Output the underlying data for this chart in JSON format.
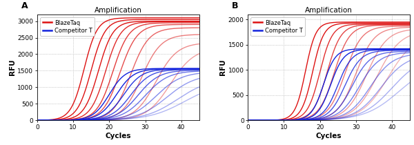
{
  "title": "Amplification",
  "xlabel": "Cycles",
  "ylabel": "RFU",
  "background": "#ffffff",
  "panel_A": {
    "label": "A",
    "ylim": [
      0,
      3200
    ],
    "yticks": [
      0,
      500,
      1000,
      1500,
      2000,
      2500,
      3000
    ],
    "xlim": [
      0,
      45
    ],
    "xticks": [
      0,
      10,
      20,
      30,
      40
    ],
    "red_curves": [
      {
        "L": 3100,
        "k": 0.55,
        "x0": 13,
        "alpha": 1.0
      },
      {
        "L": 3050,
        "k": 0.52,
        "x0": 15,
        "alpha": 1.0
      },
      {
        "L": 3000,
        "k": 0.5,
        "x0": 17,
        "alpha": 1.0
      },
      {
        "L": 2980,
        "k": 0.48,
        "x0": 19,
        "alpha": 0.9
      },
      {
        "L": 2950,
        "k": 0.45,
        "x0": 21,
        "alpha": 0.82
      },
      {
        "L": 2900,
        "k": 0.42,
        "x0": 23,
        "alpha": 0.75
      },
      {
        "L": 2800,
        "k": 0.4,
        "x0": 26,
        "alpha": 0.65
      },
      {
        "L": 2600,
        "k": 0.37,
        "x0": 29,
        "alpha": 0.55
      },
      {
        "L": 2350,
        "k": 0.34,
        "x0": 33,
        "alpha": 0.48
      },
      {
        "L": 2200,
        "k": 0.3,
        "x0": 37,
        "alpha": 0.4
      }
    ],
    "blue_curves": [
      {
        "L": 1570,
        "k": 0.45,
        "x0": 20,
        "alpha": 1.0
      },
      {
        "L": 1560,
        "k": 0.42,
        "x0": 22,
        "alpha": 1.0
      },
      {
        "L": 1550,
        "k": 0.4,
        "x0": 24,
        "alpha": 0.9
      },
      {
        "L": 1540,
        "k": 0.37,
        "x0": 26,
        "alpha": 0.8
      },
      {
        "L": 1520,
        "k": 0.34,
        "x0": 28,
        "alpha": 0.72
      },
      {
        "L": 1500,
        "k": 0.31,
        "x0": 30,
        "alpha": 0.62
      },
      {
        "L": 1470,
        "k": 0.28,
        "x0": 33,
        "alpha": 0.52
      },
      {
        "L": 1400,
        "k": 0.25,
        "x0": 36,
        "alpha": 0.45
      },
      {
        "L": 1280,
        "k": 0.22,
        "x0": 39,
        "alpha": 0.38
      },
      {
        "L": 1150,
        "k": 0.2,
        "x0": 41,
        "alpha": 0.32
      }
    ]
  },
  "panel_B": {
    "label": "B",
    "ylim": [
      0,
      2100
    ],
    "yticks": [
      0,
      500,
      1000,
      1500,
      2000
    ],
    "xlim": [
      0,
      45
    ],
    "xticks": [
      0,
      10,
      20,
      30,
      40
    ],
    "red_curves": [
      {
        "L": 1950,
        "k": 0.7,
        "x0": 16,
        "alpha": 1.0
      },
      {
        "L": 1930,
        "k": 0.65,
        "x0": 18,
        "alpha": 1.0
      },
      {
        "L": 1910,
        "k": 0.58,
        "x0": 20,
        "alpha": 0.88
      },
      {
        "L": 1900,
        "k": 0.52,
        "x0": 22,
        "alpha": 0.78
      },
      {
        "L": 1890,
        "k": 0.47,
        "x0": 24,
        "alpha": 0.68
      },
      {
        "L": 1870,
        "k": 0.43,
        "x0": 27,
        "alpha": 0.58
      },
      {
        "L": 1850,
        "k": 0.39,
        "x0": 30,
        "alpha": 0.5
      },
      {
        "L": 1820,
        "k": 0.35,
        "x0": 33,
        "alpha": 0.42
      },
      {
        "L": 1780,
        "k": 0.31,
        "x0": 36,
        "alpha": 0.36
      },
      {
        "L": 1720,
        "k": 0.27,
        "x0": 39,
        "alpha": 0.3
      }
    ],
    "blue_curves": [
      {
        "L": 1420,
        "k": 0.6,
        "x0": 21,
        "alpha": 1.0
      },
      {
        "L": 1410,
        "k": 0.55,
        "x0": 23,
        "alpha": 1.0
      },
      {
        "L": 1400,
        "k": 0.5,
        "x0": 25,
        "alpha": 0.88
      },
      {
        "L": 1390,
        "k": 0.45,
        "x0": 27,
        "alpha": 0.78
      },
      {
        "L": 1370,
        "k": 0.4,
        "x0": 29,
        "alpha": 0.68
      },
      {
        "L": 1350,
        "k": 0.36,
        "x0": 31,
        "alpha": 0.58
      },
      {
        "L": 1330,
        "k": 0.32,
        "x0": 34,
        "alpha": 0.5
      },
      {
        "L": 1310,
        "k": 0.28,
        "x0": 37,
        "alpha": 0.42
      },
      {
        "L": 1280,
        "k": 0.24,
        "x0": 40,
        "alpha": 0.36
      },
      {
        "L": 1150,
        "k": 0.21,
        "x0": 42,
        "alpha": 0.3
      }
    ]
  },
  "red_color": "#dd1111",
  "blue_color": "#1122dd",
  "legend_red": "BlazeTaq",
  "legend_blue": "Competitor T",
  "grid_color": "#999999",
  "border_color": "#222222",
  "tick_fontsize": 6.5,
  "label_fontsize": 7.5,
  "title_fontsize": 7.5,
  "panel_label_fontsize": 9,
  "lw": 1.0
}
